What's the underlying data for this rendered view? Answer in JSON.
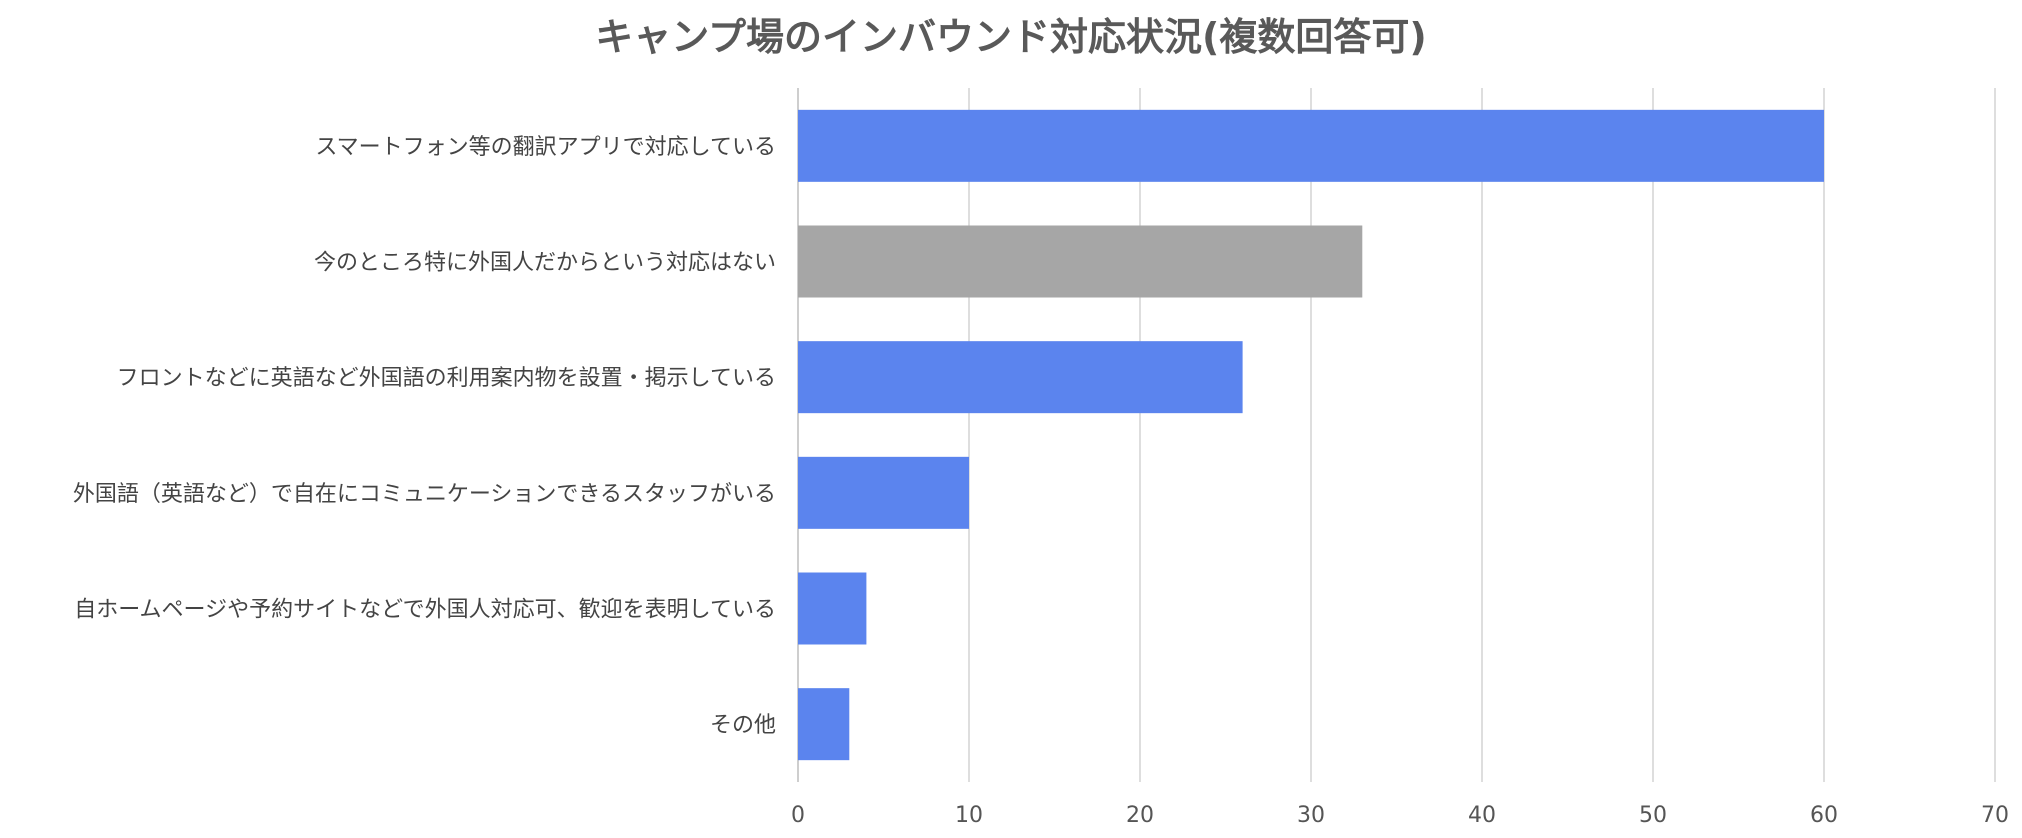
{
  "chart_data": {
    "type": "bar",
    "orientation": "horizontal",
    "title": "キャンプ場のインバウンド対応状況(複数回答可)",
    "categories": [
      "スマートフォン等の翻訳アプリで対応している",
      "今のところ特に外国人だからという対応はない",
      "フロントなどに英語など外国語の利用案内物を設置・掲示している",
      "外国語（英語など）で自在にコミュニケーションできるスタッフがいる",
      "自ホームページや予約サイトなどで外国人対応可、歓迎を表明している",
      "その他"
    ],
    "values": [
      60,
      33,
      26,
      10,
      4,
      3
    ],
    "bar_colors": [
      "#5b84ee",
      "#a6a6a6",
      "#5b84ee",
      "#5b84ee",
      "#5b84ee",
      "#5b84ee"
    ],
    "xlim": [
      0,
      70
    ],
    "xticks": [
      0,
      10,
      20,
      30,
      40,
      50,
      60,
      70
    ],
    "grid": true,
    "legend": "none"
  }
}
